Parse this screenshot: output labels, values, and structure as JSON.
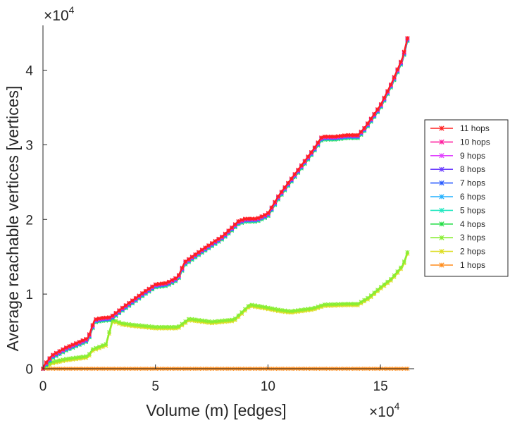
{
  "chart_data": {
    "type": "line",
    "title": "",
    "xlabel": "Volume (m) [edges]",
    "ylabel": "Average reachable vertices [vertices]",
    "x_exponent_label": "×10",
    "x_exponent_power": "4",
    "y_exponent_label": "×10",
    "y_exponent_power": "4",
    "x_scale": 10000,
    "y_scale": 10000,
    "xlim": [
      0,
      16.5
    ],
    "ylim": [
      0,
      4.6
    ],
    "xticks": [
      0,
      5,
      10,
      15
    ],
    "xtick_labels": [
      "0",
      "5",
      "10",
      "15"
    ],
    "yticks": [
      0,
      1,
      2,
      3,
      4
    ],
    "ytick_labels": [
      "0",
      "1",
      "2",
      "3",
      "4"
    ],
    "grid": false,
    "legend_position": "right",
    "series": [
      {
        "name": "11 hops",
        "color": "#ff2020",
        "profile": "high",
        "offset": 0.03
      },
      {
        "name": "10 hops",
        "color": "#ff20a0",
        "profile": "high",
        "offset": 0.025
      },
      {
        "name": "9 hops",
        "color": "#e040ff",
        "profile": "high",
        "offset": 0.02
      },
      {
        "name": "8 hops",
        "color": "#6a3cff",
        "profile": "high",
        "offset": 0.015
      },
      {
        "name": "7 hops",
        "color": "#2a5cff",
        "profile": "high",
        "offset": 0.01
      },
      {
        "name": "6 hops",
        "color": "#22b0ff",
        "profile": "high",
        "offset": 0.005
      },
      {
        "name": "5 hops",
        "color": "#22e8c0",
        "profile": "high",
        "offset": 0.0
      },
      {
        "name": "4 hops",
        "color": "#22dd44",
        "profile": "high",
        "offset": -0.01
      },
      {
        "name": "3 hops",
        "color": "#88ee33",
        "profile": "low",
        "offset": 0.01
      },
      {
        "name": "2 hops",
        "color": "#dddd22",
        "profile": "low",
        "offset": -0.01
      },
      {
        "name": "1 hops",
        "color": "#ff8c1a",
        "profile": "flat",
        "offset": 0.0
      }
    ],
    "profiles": {
      "high": {
        "x": [
          0,
          0.4,
          1.0,
          2.0,
          2.3,
          2.6,
          3.0,
          3.5,
          4.5,
          5.0,
          5.5,
          6.0,
          6.3,
          7.0,
          8.0,
          8.7,
          9.0,
          9.5,
          10.0,
          10.5,
          11.0,
          11.5,
          12.0,
          12.4,
          13.0,
          13.5,
          14.0,
          14.3,
          15.0,
          15.5,
          16.0,
          16.2
        ],
        "y": [
          0.0,
          0.15,
          0.25,
          0.38,
          0.63,
          0.65,
          0.66,
          0.78,
          1.0,
          1.1,
          1.12,
          1.2,
          1.4,
          1.55,
          1.75,
          1.95,
          1.98,
          1.98,
          2.05,
          2.3,
          2.5,
          2.7,
          2.9,
          3.08,
          3.08,
          3.1,
          3.1,
          3.2,
          3.5,
          3.8,
          4.15,
          4.4
        ]
      },
      "low": {
        "x": [
          0,
          0.4,
          1.0,
          2.0,
          2.2,
          2.8,
          3.1,
          3.5,
          4.0,
          5.0,
          6.0,
          6.5,
          7.5,
          8.5,
          9.2,
          9.8,
          10.5,
          11.0,
          12.0,
          12.5,
          13.5,
          14.0,
          14.5,
          15.0,
          15.5,
          16.0,
          16.2
        ],
        "y": [
          0.0,
          0.08,
          0.12,
          0.16,
          0.25,
          0.32,
          0.65,
          0.6,
          0.58,
          0.55,
          0.55,
          0.66,
          0.62,
          0.65,
          0.85,
          0.82,
          0.78,
          0.76,
          0.8,
          0.85,
          0.86,
          0.86,
          0.95,
          1.08,
          1.2,
          1.38,
          1.55
        ]
      },
      "flat": {
        "x": [
          0,
          16.2
        ],
        "y": [
          0.0,
          0.0
        ]
      }
    }
  }
}
